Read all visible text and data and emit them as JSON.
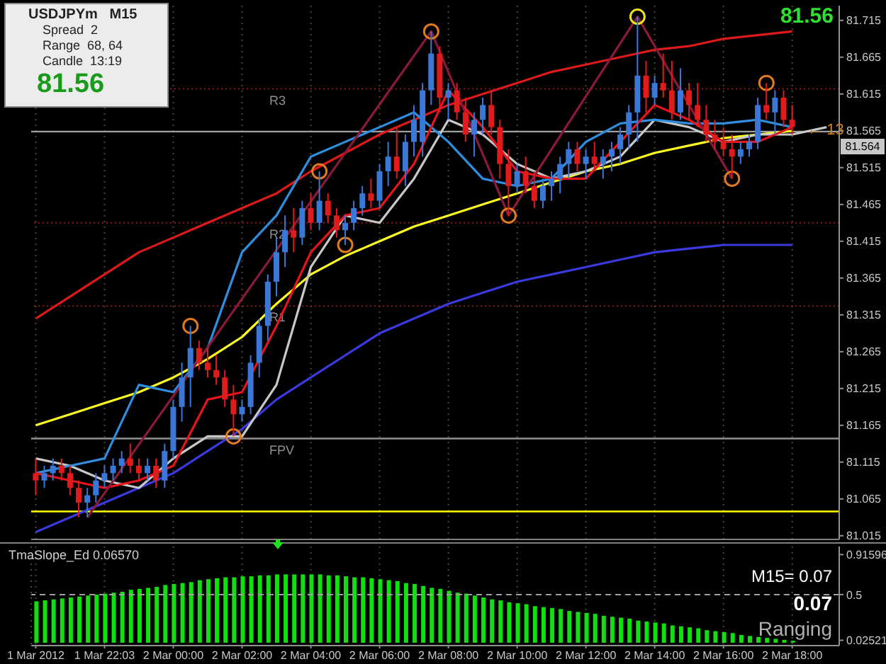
{
  "chart_data": [
    {
      "type": "candlestick",
      "x": [
        "2012-03-01T20:00",
        "2012-03-01T20:15",
        "2012-03-01T20:30",
        "2012-03-01T20:45",
        "2012-03-01T21:00",
        "2012-03-01T21:15",
        "2012-03-01T21:30",
        "2012-03-01T21:45",
        "2012-03-01T22:00",
        "2012-03-01T22:15",
        "2012-03-01T22:30",
        "2012-03-01T22:45",
        "2012-03-01T23:00",
        "2012-03-01T23:15",
        "2012-03-01T23:30",
        "2012-03-01T23:45",
        "2012-03-02T00:00",
        "2012-03-02T00:15",
        "2012-03-02T00:30",
        "2012-03-02T00:45",
        "2012-03-02T01:00",
        "2012-03-02T01:15",
        "2012-03-02T01:30",
        "2012-03-02T01:45",
        "2012-03-02T02:00",
        "2012-03-02T02:15",
        "2012-03-02T02:30",
        "2012-03-02T02:45",
        "2012-03-02T03:00",
        "2012-03-02T03:15",
        "2012-03-02T03:30",
        "2012-03-02T03:45",
        "2012-03-02T04:00",
        "2012-03-02T04:15",
        "2012-03-02T04:30",
        "2012-03-02T04:45",
        "2012-03-02T05:00",
        "2012-03-02T05:15",
        "2012-03-02T05:30",
        "2012-03-02T05:45",
        "2012-03-02T06:00",
        "2012-03-02T06:15",
        "2012-03-02T06:30",
        "2012-03-02T06:45",
        "2012-03-02T07:00",
        "2012-03-02T07:15",
        "2012-03-02T07:30",
        "2012-03-02T07:45",
        "2012-03-02T08:00",
        "2012-03-02T08:15",
        "2012-03-02T08:30",
        "2012-03-02T08:45",
        "2012-03-02T09:00",
        "2012-03-02T09:15",
        "2012-03-02T09:30",
        "2012-03-02T09:45",
        "2012-03-02T10:00",
        "2012-03-02T10:15",
        "2012-03-02T10:30",
        "2012-03-02T10:45",
        "2012-03-02T11:00",
        "2012-03-02T11:15",
        "2012-03-02T11:30",
        "2012-03-02T11:45",
        "2012-03-02T12:00",
        "2012-03-02T12:15",
        "2012-03-02T12:30",
        "2012-03-02T12:45",
        "2012-03-02T13:00",
        "2012-03-02T13:15",
        "2012-03-02T13:30",
        "2012-03-02T13:45",
        "2012-03-02T14:00",
        "2012-03-02T14:15",
        "2012-03-02T14:30",
        "2012-03-02T14:45",
        "2012-03-02T15:00",
        "2012-03-02T15:15",
        "2012-03-02T15:30",
        "2012-03-02T15:45",
        "2012-03-02T16:00",
        "2012-03-02T16:15",
        "2012-03-02T16:30",
        "2012-03-02T16:45",
        "2012-03-02T17:00",
        "2012-03-02T17:15",
        "2012-03-02T17:30",
        "2012-03-02T17:45",
        "2012-03-02T18:00"
      ],
      "ohlc": [
        [
          81.1,
          81.12,
          81.07,
          81.09
        ],
        [
          81.09,
          81.11,
          81.08,
          81.1
        ],
        [
          81.1,
          81.12,
          81.09,
          81.11
        ],
        [
          81.11,
          81.12,
          81.09,
          81.1
        ],
        [
          81.1,
          81.11,
          81.07,
          81.08
        ],
        [
          81.08,
          81.09,
          81.04,
          81.06
        ],
        [
          81.06,
          81.08,
          81.04,
          81.07
        ],
        [
          81.07,
          81.1,
          81.06,
          81.09
        ],
        [
          81.09,
          81.11,
          81.08,
          81.1
        ],
        [
          81.1,
          81.12,
          81.09,
          81.11
        ],
        [
          81.11,
          81.13,
          81.1,
          81.12
        ],
        [
          81.12,
          81.14,
          81.1,
          81.11
        ],
        [
          81.11,
          81.12,
          81.09,
          81.1
        ],
        [
          81.1,
          81.12,
          81.09,
          81.11
        ],
        [
          81.11,
          81.12,
          81.08,
          81.09
        ],
        [
          81.09,
          81.14,
          81.08,
          81.13
        ],
        [
          81.13,
          81.2,
          81.12,
          81.19
        ],
        [
          81.19,
          81.25,
          81.17,
          81.23
        ],
        [
          81.23,
          81.3,
          81.19,
          81.27
        ],
        [
          81.27,
          81.28,
          81.24,
          81.25
        ],
        [
          81.25,
          81.27,
          81.23,
          81.24
        ],
        [
          81.24,
          81.26,
          81.22,
          81.23
        ],
        [
          81.23,
          81.24,
          81.19,
          81.2
        ],
        [
          81.2,
          81.22,
          81.15,
          81.18
        ],
        [
          81.18,
          81.2,
          81.17,
          81.19
        ],
        [
          81.19,
          81.26,
          81.18,
          81.25
        ],
        [
          81.25,
          81.31,
          81.23,
          81.3
        ],
        [
          81.3,
          81.37,
          81.28,
          81.36
        ],
        [
          81.36,
          81.42,
          81.34,
          81.4
        ],
        [
          81.4,
          81.45,
          81.38,
          81.43
        ],
        [
          81.43,
          81.46,
          81.4,
          81.42
        ],
        [
          81.42,
          81.47,
          81.41,
          81.46
        ],
        [
          81.46,
          81.48,
          81.43,
          81.44
        ],
        [
          81.44,
          81.51,
          81.43,
          81.47
        ],
        [
          81.47,
          81.48,
          81.44,
          81.45
        ],
        [
          81.45,
          81.46,
          81.42,
          81.43
        ],
        [
          81.43,
          81.45,
          81.41,
          81.44
        ],
        [
          81.44,
          81.47,
          81.43,
          81.46
        ],
        [
          81.46,
          81.49,
          81.45,
          81.48
        ],
        [
          81.48,
          81.5,
          81.46,
          81.47
        ],
        [
          81.47,
          81.52,
          81.46,
          81.51
        ],
        [
          81.51,
          81.55,
          81.49,
          81.53
        ],
        [
          81.53,
          81.57,
          81.5,
          81.51
        ],
        [
          81.51,
          81.56,
          81.49,
          81.55
        ],
        [
          81.55,
          81.6,
          81.53,
          81.58
        ],
        [
          81.55,
          81.63,
          81.53,
          81.62
        ],
        [
          81.62,
          81.7,
          81.6,
          81.67
        ],
        [
          81.67,
          81.68,
          81.59,
          81.61
        ],
        [
          81.61,
          81.63,
          81.58,
          81.62
        ],
        [
          81.62,
          81.63,
          81.58,
          81.59
        ],
        [
          81.59,
          81.61,
          81.55,
          81.56
        ],
        [
          81.56,
          81.59,
          81.53,
          81.58
        ],
        [
          81.58,
          81.61,
          81.56,
          81.6
        ],
        [
          81.6,
          81.62,
          81.56,
          81.57
        ],
        [
          81.57,
          81.58,
          81.5,
          81.52
        ],
        [
          81.52,
          81.54,
          81.45,
          81.49
        ],
        [
          81.49,
          81.52,
          81.48,
          81.51
        ],
        [
          81.51,
          81.53,
          81.48,
          81.49
        ],
        [
          81.49,
          81.51,
          81.46,
          81.47
        ],
        [
          81.47,
          81.5,
          81.46,
          81.49
        ],
        [
          81.49,
          81.51,
          81.47,
          81.5
        ],
        [
          81.5,
          81.53,
          81.48,
          81.52
        ],
        [
          81.52,
          81.55,
          81.5,
          81.54
        ],
        [
          81.54,
          81.55,
          81.51,
          81.52
        ],
        [
          81.52,
          81.54,
          81.5,
          81.53
        ],
        [
          81.53,
          81.55,
          81.51,
          81.52
        ],
        [
          81.52,
          81.54,
          81.5,
          81.53
        ],
        [
          81.53,
          81.55,
          81.51,
          81.54
        ],
        [
          81.54,
          81.57,
          81.52,
          81.56
        ],
        [
          81.56,
          81.6,
          81.54,
          81.59
        ],
        [
          81.59,
          81.72,
          81.55,
          81.64
        ],
        [
          81.64,
          81.66,
          81.59,
          81.61
        ],
        [
          81.61,
          81.64,
          81.6,
          81.63
        ],
        [
          81.63,
          81.67,
          81.61,
          81.62
        ],
        [
          81.62,
          81.66,
          81.58,
          81.59
        ],
        [
          81.59,
          81.65,
          81.58,
          81.62
        ],
        [
          81.62,
          81.63,
          81.58,
          81.6
        ],
        [
          81.6,
          81.63,
          81.57,
          81.58
        ],
        [
          81.58,
          81.6,
          81.55,
          81.56
        ],
        [
          81.56,
          81.58,
          81.54,
          81.55
        ],
        [
          81.55,
          81.57,
          81.53,
          81.54
        ],
        [
          81.54,
          81.56,
          81.5,
          81.53
        ],
        [
          81.53,
          81.55,
          81.52,
          81.54
        ],
        [
          81.54,
          81.56,
          81.53,
          81.55
        ],
        [
          81.55,
          81.61,
          81.54,
          81.6
        ],
        [
          81.6,
          81.63,
          81.58,
          81.59
        ],
        [
          81.59,
          81.62,
          81.56,
          81.61
        ],
        [
          81.61,
          81.62,
          81.57,
          81.58
        ],
        [
          81.58,
          81.6,
          81.56,
          81.57
        ]
      ],
      "colors": [
        "#e01b1b",
        "#3a78d8",
        "#3a78d8",
        "#e01b1b",
        "#e01b1b",
        "#e01b1b",
        "#3a78d8",
        "#3a78d8",
        "#3a78d8",
        "#3a78d8",
        "#3a78d8",
        "#e01b1b",
        "#e01b1b",
        "#3a78d8",
        "#e01b1b",
        "#3a78d8",
        "#3a78d8",
        "#3a78d8",
        "#3a78d8",
        "#e01b1b",
        "#e01b1b",
        "#e01b1b",
        "#e01b1b",
        "#e01b1b",
        "#3a78d8",
        "#3a78d8",
        "#3a78d8",
        "#3a78d8",
        "#3a78d8",
        "#3a78d8",
        "#e01b1b",
        "#3a78d8",
        "#e01b1b",
        "#3a78d8",
        "#e01b1b",
        "#e01b1b",
        "#3a78d8",
        "#3a78d8",
        "#3a78d8",
        "#e01b1b",
        "#3a78d8",
        "#3a78d8",
        "#e01b1b",
        "#3a78d8",
        "#3a78d8",
        "#3a78d8",
        "#3a78d8",
        "#e01b1b",
        "#3a78d8",
        "#e01b1b",
        "#e01b1b",
        "#3a78d8",
        "#3a78d8",
        "#e01b1b",
        "#e01b1b",
        "#e01b1b",
        "#3a78d8",
        "#e01b1b",
        "#e01b1b",
        "#3a78d8",
        "#3a78d8",
        "#3a78d8",
        "#3a78d8",
        "#e01b1b",
        "#3a78d8",
        "#e01b1b",
        "#3a78d8",
        "#3a78d8",
        "#3a78d8",
        "#3a78d8",
        "#3a78d8",
        "#e01b1b",
        "#3a78d8",
        "#e01b1b",
        "#e01b1b",
        "#3a78d8",
        "#e01b1b",
        "#e01b1b",
        "#e01b1b",
        "#e01b1b",
        "#e01b1b",
        "#e01b1b",
        "#3a78d8",
        "#3a78d8",
        "#3a78d8",
        "#e01b1b",
        "#3a78d8",
        "#e01b1b",
        "#e01b1b"
      ],
      "series": [
        {
          "type": "line",
          "color": "#dd1a1a",
          "x": [
            "2012-03-01T20:00",
            "2012-03-01T21:00",
            "2012-03-01T22:00",
            "2012-03-01T23:00",
            "2012-03-02T00:00",
            "2012-03-02T01:00",
            "2012-03-02T02:00",
            "2012-03-02T03:00",
            "2012-03-02T04:00",
            "2012-03-02T05:00",
            "2012-03-02T06:00",
            "2012-03-02T07:00",
            "2012-03-02T08:00",
            "2012-03-02T09:00",
            "2012-03-02T10:00",
            "2012-03-02T11:00",
            "2012-03-02T12:00",
            "2012-03-02T13:00",
            "2012-03-02T14:00",
            "2012-03-02T15:00",
            "2012-03-02T16:00",
            "2012-03-02T17:00",
            "2012-03-02T18:00"
          ],
          "values": [
            81.31,
            81.34,
            81.37,
            81.4,
            81.42,
            81.44,
            81.46,
            81.48,
            81.51,
            81.535,
            81.56,
            81.58,
            81.6,
            81.615,
            81.63,
            81.645,
            81.655,
            81.665,
            81.675,
            81.68,
            81.69,
            81.695,
            81.7
          ]
        },
        {
          "type": "line",
          "color": "#3a3adf",
          "x": [
            "2012-03-01T20:00",
            "2012-03-01T21:00",
            "2012-03-01T22:00",
            "2012-03-01T23:00",
            "2012-03-02T00:00",
            "2012-03-02T01:00",
            "2012-03-02T02:00",
            "2012-03-02T03:00",
            "2012-03-02T04:00",
            "2012-03-02T05:00",
            "2012-03-02T06:00",
            "2012-03-02T07:00",
            "2012-03-02T08:00",
            "2012-03-02T09:00",
            "2012-03-02T10:00",
            "2012-03-02T11:00",
            "2012-03-02T12:00",
            "2012-03-02T13:00",
            "2012-03-02T14:00",
            "2012-03-02T15:00",
            "2012-03-02T16:00",
            "2012-03-02T17:00",
            "2012-03-02T18:00"
          ],
          "values": [
            81.02,
            81.04,
            81.06,
            81.08,
            81.1,
            81.13,
            81.16,
            81.2,
            81.23,
            81.26,
            81.29,
            81.31,
            81.33,
            81.345,
            81.36,
            81.37,
            81.38,
            81.39,
            81.4,
            81.405,
            81.41,
            81.41,
            81.41
          ]
        },
        {
          "type": "line",
          "color": "#ffff20",
          "x": [
            "2012-03-01T20:00",
            "2012-03-01T21:00",
            "2012-03-01T22:00",
            "2012-03-01T23:00",
            "2012-03-02T00:00",
            "2012-03-02T01:00",
            "2012-03-02T02:00",
            "2012-03-02T03:00",
            "2012-03-02T04:00",
            "2012-03-02T05:00",
            "2012-03-02T06:00",
            "2012-03-02T07:00",
            "2012-03-02T08:00",
            "2012-03-02T09:00",
            "2012-03-02T10:00",
            "2012-03-02T11:00",
            "2012-03-02T12:00",
            "2012-03-02T13:00",
            "2012-03-02T14:00",
            "2012-03-02T15:00",
            "2012-03-02T16:00",
            "2012-03-02T17:00",
            "2012-03-02T18:00"
          ],
          "values": [
            81.165,
            81.18,
            81.195,
            81.21,
            81.23,
            81.255,
            81.285,
            81.33,
            81.37,
            81.395,
            81.415,
            81.435,
            81.45,
            81.465,
            81.48,
            81.495,
            81.51,
            81.52,
            81.535,
            81.545,
            81.555,
            81.56,
            81.565
          ]
        },
        {
          "type": "line",
          "color": "#c8c8c8",
          "x": [
            "2012-03-01T20:00",
            "2012-03-01T21:00",
            "2012-03-01T22:00",
            "2012-03-01T23:00",
            "2012-03-02T00:00",
            "2012-03-02T01:00",
            "2012-03-02T02:00",
            "2012-03-02T03:00",
            "2012-03-02T04:00",
            "2012-03-02T05:00",
            "2012-03-02T06:00",
            "2012-03-02T07:00",
            "2012-03-02T08:00",
            "2012-03-02T09:00",
            "2012-03-02T10:00",
            "2012-03-02T11:00",
            "2012-03-02T12:00",
            "2012-03-02T13:00",
            "2012-03-02T14:00",
            "2012-03-02T15:00",
            "2012-03-02T16:00",
            "2012-03-02T17:00",
            "2012-03-02T18:00",
            "2012-03-02T19:00"
          ],
          "values": [
            81.12,
            81.11,
            81.09,
            81.08,
            81.12,
            81.15,
            81.15,
            81.22,
            81.38,
            81.45,
            81.44,
            81.5,
            81.58,
            81.56,
            81.52,
            81.5,
            81.51,
            81.53,
            81.58,
            81.57,
            81.55,
            81.56,
            81.56,
            81.57
          ]
        },
        {
          "type": "line",
          "color": "#2e8fe0",
          "x": [
            "2012-03-01T20:00",
            "2012-03-01T21:00",
            "2012-03-01T22:00",
            "2012-03-01T23:00",
            "2012-03-02T00:00",
            "2012-03-02T01:00",
            "2012-03-02T02:00",
            "2012-03-02T03:00",
            "2012-03-02T04:00",
            "2012-03-02T05:00",
            "2012-03-02T06:00",
            "2012-03-02T07:00",
            "2012-03-02T08:00",
            "2012-03-02T09:00",
            "2012-03-02T10:00",
            "2012-03-02T11:00",
            "2012-03-02T12:00",
            "2012-03-02T13:00",
            "2012-03-02T14:00",
            "2012-03-02T15:00",
            "2012-03-02T16:00",
            "2012-03-02T17:00",
            "2012-03-02T18:00"
          ],
          "values": [
            81.1,
            81.11,
            81.12,
            81.22,
            81.21,
            81.27,
            81.4,
            81.45,
            81.53,
            81.55,
            81.57,
            81.59,
            81.55,
            81.5,
            81.49,
            81.5,
            81.55,
            81.575,
            81.58,
            81.575,
            81.575,
            81.58,
            81.57
          ]
        },
        {
          "type": "line",
          "color": "#e8141c",
          "x": [
            "2012-03-01T20:00",
            "2012-03-01T21:00",
            "2012-03-01T22:00",
            "2012-03-01T23:00",
            "2012-03-02T00:00",
            "2012-03-02T01:00",
            "2012-03-02T02:00",
            "2012-03-02T03:00",
            "2012-03-02T04:00",
            "2012-03-02T05:00",
            "2012-03-02T06:00",
            "2012-03-02T07:00",
            "2012-03-02T08:00",
            "2012-03-02T09:00",
            "2012-03-02T10:00",
            "2012-03-02T11:00",
            "2012-03-02T12:00",
            "2012-03-02T13:00",
            "2012-03-02T14:00",
            "2012-03-02T15:00",
            "2012-03-02T16:00",
            "2012-03-02T17:00",
            "2012-03-02T18:00"
          ],
          "values": [
            81.1,
            81.09,
            81.08,
            81.09,
            81.11,
            81.2,
            81.21,
            81.3,
            81.4,
            81.45,
            81.46,
            81.52,
            81.62,
            81.57,
            81.51,
            81.5,
            81.5,
            81.55,
            81.6,
            81.58,
            81.55,
            81.55,
            81.57
          ]
        },
        {
          "type": "line",
          "color": "#8b1a3a",
          "x": [
            "2012-03-01T21:30",
            "2012-03-02T07:30",
            "2012-03-02T09:45",
            "2012-03-02T13:30",
            "2012-03-02T16:15"
          ],
          "values": [
            81.04,
            81.7,
            81.45,
            81.72,
            81.5
          ]
        },
        {
          "type": "scatter",
          "marker": "circle",
          "x": [
            "2012-03-02T00:30",
            "2012-03-02T01:45",
            "2012-03-02T04:15",
            "2012-03-02T05:00",
            "2012-03-02T07:30",
            "2012-03-02T09:45",
            "2012-03-02T13:30",
            "2012-03-02T16:15",
            "2012-03-02T17:15"
          ],
          "values": [
            81.3,
            81.15,
            81.51,
            81.41,
            81.7,
            81.45,
            81.72,
            81.5,
            81.63
          ],
          "colors": [
            "#e07a20",
            "#e07a20",
            "#e07a20",
            "#e07a20",
            "#e07a20",
            "#e07a20",
            "#f0e020",
            "#e07a20",
            "#e07a20"
          ]
        }
      ],
      "xlim": [
        "2012-03-01T19:52",
        "2012-03-02T19:22"
      ],
      "xticks": [
        {
          "value": "2012-03-01T20:00",
          "label": null
        },
        {
          "value": "2012-03-01T22:00",
          "label": null
        },
        {
          "value": "2012-03-02T00:00",
          "label": null
        },
        {
          "value": "2012-03-02T02:00",
          "label": null
        },
        {
          "value": "2012-03-02T04:00",
          "label": null
        },
        {
          "value": "2012-03-02T06:00",
          "label": null
        },
        {
          "value": "2012-03-02T08:00",
          "label": null
        },
        {
          "value": "2012-03-02T10:00",
          "label": null
        },
        {
          "value": "2012-03-02T12:00",
          "label": null
        },
        {
          "value": "2012-03-02T14:00",
          "label": null
        },
        {
          "value": "2012-03-02T16:00",
          "label": null
        },
        {
          "value": "2012-03-02T18:00",
          "label": null
        }
      ],
      "ylim": [
        81.01,
        81.735
      ],
      "yticks": [
        81.015,
        81.065,
        81.115,
        81.165,
        81.215,
        81.265,
        81.315,
        81.365,
        81.415,
        81.465,
        81.515,
        81.565,
        81.615,
        81.665,
        81.715
      ],
      "tick_labels": "y",
      "grid": "x",
      "ref_lines": [
        {
          "axis": "y",
          "value": 81.622,
          "label": "R3",
          "color": "#8b1a1a",
          "line_style": "dotted"
        },
        {
          "axis": "y",
          "value": 81.44,
          "label": "R2",
          "color": "#8b1a1a",
          "line_style": "dotted"
        },
        {
          "axis": "y",
          "value": 81.327,
          "label": "R1",
          "color": "#8b1a1a",
          "line_style": "dotted"
        },
        {
          "axis": "y",
          "value": 81.564,
          "color": "#a0a0a0"
        },
        {
          "axis": "y",
          "value": 81.147,
          "label": "FPV",
          "color": "#909090"
        },
        {
          "axis": "y",
          "value": 81.048,
          "color": "#ffff00"
        }
      ],
      "annotations": [
        "USDJPYm   M15",
        "Spread  2",
        "Range  68, 64",
        "Candle  13:19",
        "81.56",
        "81.56",
        "81.564",
        {
          "text": "← 13",
          "x": "2012-03-02T18:45",
          "y": 81.564
        }
      ]
    },
    {
      "type": "bar",
      "title": "TmaSlope_Ed 0.06570",
      "x": [
        "2012-03-01T20:00",
        "2012-03-01T20:15",
        "2012-03-01T20:30",
        "2012-03-01T20:45",
        "2012-03-01T21:00",
        "2012-03-01T21:15",
        "2012-03-01T21:30",
        "2012-03-01T21:45",
        "2012-03-01T22:00",
        "2012-03-01T22:15",
        "2012-03-01T22:30",
        "2012-03-01T22:45",
        "2012-03-01T23:00",
        "2012-03-01T23:15",
        "2012-03-01T23:30",
        "2012-03-01T23:45",
        "2012-03-02T00:00",
        "2012-03-02T00:15",
        "2012-03-02T00:30",
        "2012-03-02T00:45",
        "2012-03-02T01:00",
        "2012-03-02T01:15",
        "2012-03-02T01:30",
        "2012-03-02T01:45",
        "2012-03-02T02:00",
        "2012-03-02T02:15",
        "2012-03-02T02:30",
        "2012-03-02T02:45",
        "2012-03-02T03:00",
        "2012-03-02T03:15",
        "2012-03-02T03:30",
        "2012-03-02T03:45",
        "2012-03-02T04:00",
        "2012-03-02T04:15",
        "2012-03-02T04:30",
        "2012-03-02T04:45",
        "2012-03-02T05:00",
        "2012-03-02T05:15",
        "2012-03-02T05:30",
        "2012-03-02T05:45",
        "2012-03-02T06:00",
        "2012-03-02T06:15",
        "2012-03-02T06:30",
        "2012-03-02T06:45",
        "2012-03-02T07:00",
        "2012-03-02T07:15",
        "2012-03-02T07:30",
        "2012-03-02T07:45",
        "2012-03-02T08:00",
        "2012-03-02T08:15",
        "2012-03-02T08:30",
        "2012-03-02T08:45",
        "2012-03-02T09:00",
        "2012-03-02T09:15",
        "2012-03-02T09:30",
        "2012-03-02T09:45",
        "2012-03-02T10:00",
        "2012-03-02T10:15",
        "2012-03-02T10:30",
        "2012-03-02T10:45",
        "2012-03-02T11:00",
        "2012-03-02T11:15",
        "2012-03-02T11:30",
        "2012-03-02T11:45",
        "2012-03-02T12:00",
        "2012-03-02T12:15",
        "2012-03-02T12:30",
        "2012-03-02T12:45",
        "2012-03-02T13:00",
        "2012-03-02T13:15",
        "2012-03-02T13:30",
        "2012-03-02T13:45",
        "2012-03-02T14:00",
        "2012-03-02T14:15",
        "2012-03-02T14:30",
        "2012-03-02T14:45",
        "2012-03-02T15:00",
        "2012-03-02T15:15",
        "2012-03-02T15:30",
        "2012-03-02T15:45",
        "2012-03-02T16:00",
        "2012-03-02T16:15",
        "2012-03-02T16:30",
        "2012-03-02T16:45",
        "2012-03-02T17:00",
        "2012-03-02T17:15",
        "2012-03-02T17:30",
        "2012-03-02T17:45",
        "2012-03-02T18:00"
      ],
      "values": [
        0.43,
        0.44,
        0.45,
        0.46,
        0.47,
        0.48,
        0.49,
        0.5,
        0.51,
        0.52,
        0.53,
        0.55,
        0.56,
        0.57,
        0.58,
        0.6,
        0.61,
        0.62,
        0.63,
        0.65,
        0.66,
        0.67,
        0.68,
        0.68,
        0.69,
        0.69,
        0.7,
        0.7,
        0.71,
        0.71,
        0.71,
        0.71,
        0.71,
        0.71,
        0.7,
        0.7,
        0.69,
        0.68,
        0.68,
        0.67,
        0.66,
        0.65,
        0.64,
        0.62,
        0.61,
        0.59,
        0.57,
        0.56,
        0.54,
        0.52,
        0.51,
        0.49,
        0.47,
        0.45,
        0.44,
        0.42,
        0.41,
        0.4,
        0.38,
        0.37,
        0.36,
        0.35,
        0.33,
        0.32,
        0.31,
        0.3,
        0.28,
        0.27,
        0.26,
        0.25,
        0.23,
        0.22,
        0.21,
        0.2,
        0.18,
        0.17,
        0.16,
        0.15,
        0.13,
        0.12,
        0.11,
        0.1,
        0.08,
        0.07,
        0.06,
        0.05,
        0.04,
        0.03,
        0.02
      ],
      "color": "#10e010",
      "xlim": [
        "2012-03-01T19:52",
        "2012-03-02T19:22"
      ],
      "xticks": [
        {
          "value": "2012-03-01T20:00",
          "label": "1 Mar 2012"
        },
        {
          "value": "2012-03-01T22:00",
          "label": "1 Mar 22:03"
        },
        {
          "value": "2012-03-02T00:00",
          "label": "2 Mar 00:00"
        },
        {
          "value": "2012-03-02T02:00",
          "label": "2 Mar 02:00"
        },
        {
          "value": "2012-03-02T04:00",
          "label": "2 Mar 04:00"
        },
        {
          "value": "2012-03-02T06:00",
          "label": "2 Mar 06:00"
        },
        {
          "value": "2012-03-02T08:00",
          "label": "2 Mar 08:00"
        },
        {
          "value": "2012-03-02T10:00",
          "label": "2 Mar 10:00"
        },
        {
          "value": "2012-03-02T12:00",
          "label": "2 Mar 12:00"
        },
        {
          "value": "2012-03-02T14:00",
          "label": "2 Mar 14:00"
        },
        {
          "value": "2012-03-02T16:00",
          "label": "2 Mar 16:00"
        },
        {
          "value": "2012-03-02T18:00",
          "label": "2 Mar 18:00"
        }
      ],
      "ylim": [
        -0.03,
        1.0
      ],
      "yticks": [
        0.02521,
        0.5,
        0.91596
      ],
      "grid": "x",
      "ref_lines": [
        {
          "axis": "y",
          "value": 0.5,
          "color": "#a0a0a0",
          "line_style": "dashed"
        }
      ],
      "annotations": [
        "M15= 0.07",
        "0.07",
        "Ranging"
      ]
    }
  ]
}
